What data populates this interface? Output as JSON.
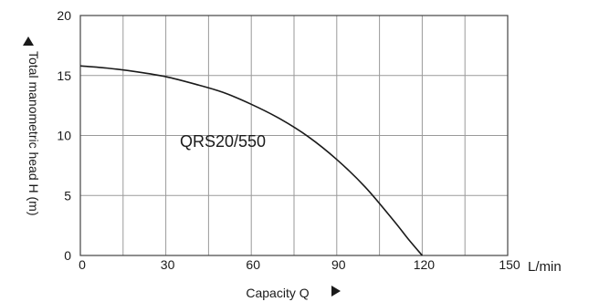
{
  "chart_data": {
    "type": "line",
    "title": "",
    "xlabel": "Capacity Q",
    "ylabel": "Total manometric head H (m)",
    "x_unit": "L/min",
    "xlim": [
      0,
      150
    ],
    "ylim": [
      0,
      20
    ],
    "x_ticks": [
      0,
      30,
      60,
      90,
      120,
      150
    ],
    "y_ticks": [
      0,
      5,
      10,
      15,
      20
    ],
    "x_grid_step": 15,
    "y_grid_step": 5,
    "grid": true,
    "annotation": "QRS20/550",
    "series": [
      {
        "x": [
          0,
          10,
          20,
          30,
          40,
          50,
          60,
          70,
          80,
          90,
          100,
          110,
          115,
          120
        ],
        "y": [
          15.8,
          15.6,
          15.3,
          14.9,
          14.3,
          13.6,
          12.6,
          11.4,
          9.9,
          8.0,
          5.7,
          2.9,
          1.4,
          0
        ],
        "color": "#1a1a1a"
      }
    ]
  },
  "colors": {
    "grid": "#9a9a9a",
    "axis": "#444444",
    "curve": "#1a1a1a",
    "text": "#1a1a1a"
  }
}
